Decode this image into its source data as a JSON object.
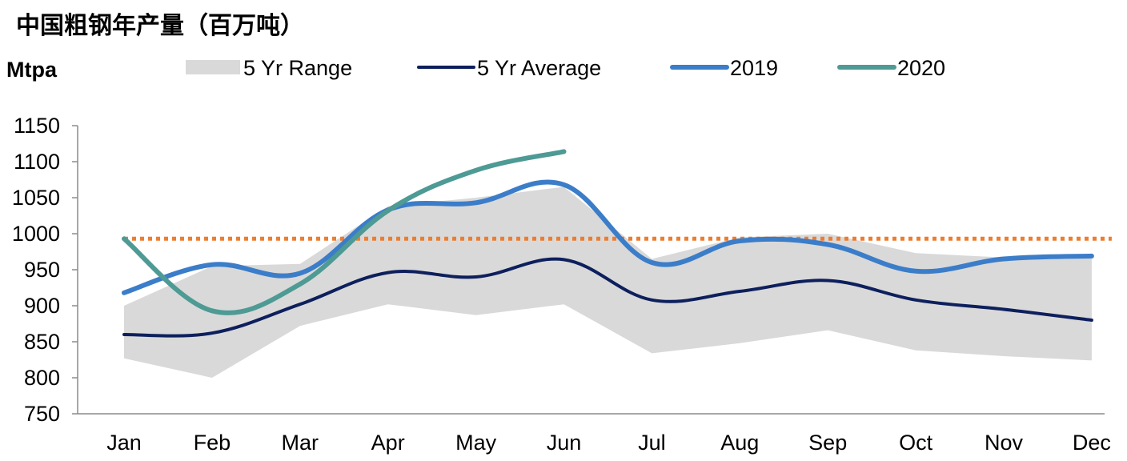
{
  "chart_data": {
    "type": "line",
    "title": "中国粗钢年产量（百万吨）",
    "ylabel": "Mtpa",
    "categories": [
      "Jan",
      "Feb",
      "Mar",
      "Apr",
      "May",
      "Jun",
      "Jul",
      "Aug",
      "Sep",
      "Oct",
      "Nov",
      "Dec"
    ],
    "ylim": [
      750,
      1150
    ],
    "yticks": [
      750,
      800,
      850,
      900,
      950,
      1000,
      1050,
      1100,
      1150
    ],
    "reference_line": {
      "value": 993,
      "color": "#ED7D31",
      "style": "dotted"
    },
    "range": {
      "name": "5 Yr Range",
      "color": "#D9D9D9",
      "low": [
        827,
        800,
        872,
        902,
        887,
        902,
        834,
        848,
        866,
        838,
        830,
        824
      ],
      "high": [
        900,
        955,
        958,
        1038,
        1050,
        1065,
        965,
        995,
        1000,
        973,
        967,
        968
      ]
    },
    "series": [
      {
        "name": "5 Yr Average",
        "color": "#0D1F5C",
        "values": [
          860,
          862,
          902,
          946,
          940,
          964,
          908,
          920,
          935,
          908,
          895,
          880
        ]
      },
      {
        "name": "2019",
        "color": "#3B7DC9",
        "values": [
          918,
          957,
          945,
          1033,
          1043,
          1068,
          960,
          990,
          985,
          948,
          965,
          969
        ]
      },
      {
        "name": "2020",
        "color": "#4E9A94",
        "values": [
          993,
          893,
          930,
          1032,
          1088,
          1114,
          null,
          null,
          null,
          null,
          null,
          null
        ]
      }
    ],
    "legend": {
      "position": "top"
    },
    "grid": false
  }
}
